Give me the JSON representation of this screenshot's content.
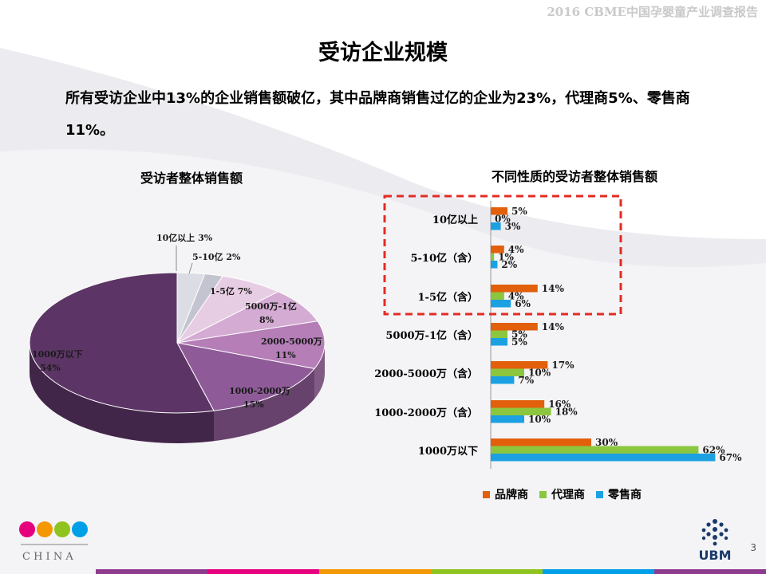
{
  "header": {
    "report_title": "2016 CBME中国孕婴童产业调查报告"
  },
  "slide": {
    "title": "受访企业规模",
    "summary": "所有受访企业中13%的企业销售额破亿，其中品牌商销售过亿的企业为23%，代理商5%、零售商11%。",
    "page_number": "3"
  },
  "logos": {
    "left_sub": "C H I N A",
    "right": "UBM"
  },
  "colors": {
    "brand": "#e2600c",
    "agent": "#8cc63f",
    "retailer": "#1ba1e2",
    "pie_main": "#5c3566",
    "highlight_box": "#e32b23"
  },
  "chart_data": [
    {
      "type": "pie",
      "title": "受访者整体销售额",
      "slices": [
        {
          "label": "10亿以上",
          "value": 3,
          "value_label": "3%",
          "color": "#dcdce4"
        },
        {
          "label": "5-10亿",
          "value": 2,
          "value_label": "2%",
          "color": "#c4c4d0"
        },
        {
          "label": "1-5亿",
          "value": 7,
          "value_label": "7%",
          "color": "#e7cde4"
        },
        {
          "label": "5000万-1亿",
          "value": 8,
          "value_label": "8%",
          "color": "#d4abd2"
        },
        {
          "label": "2000-5000万",
          "value": 11,
          "value_label": "11%",
          "color": "#b57eb7"
        },
        {
          "label": "1000-2000万",
          "value": 15,
          "value_label": "15%",
          "color": "#8e5b98"
        },
        {
          "label": "1000万以下",
          "value": 54,
          "value_label": "54%",
          "color": "#5c3566"
        }
      ]
    },
    {
      "type": "bar",
      "orientation": "horizontal",
      "title": "不同性质的受访者整体销售额",
      "categories": [
        "10亿以上",
        "5-10亿（含）",
        "1-5亿（含）",
        "5000万-1亿（含）",
        "2000-5000万（含）",
        "1000-2000万（含）",
        "1000万以下"
      ],
      "series": [
        {
          "name": "品牌商",
          "color": "#e2600c",
          "values": [
            5,
            4,
            14,
            14,
            17,
            16,
            30
          ]
        },
        {
          "name": "代理商",
          "color": "#8cc63f",
          "values": [
            0,
            1,
            4,
            5,
            10,
            18,
            62
          ]
        },
        {
          "name": "零售商",
          "color": "#1ba1e2",
          "values": [
            3,
            2,
            6,
            5,
            7,
            10,
            67
          ]
        }
      ],
      "value_suffix": "%",
      "highlight": {
        "categories": [
          "10亿以上",
          "5-10亿（含）",
          "1-5亿（含）"
        ],
        "style": "red dashed box"
      },
      "legend_position": "bottom"
    }
  ]
}
